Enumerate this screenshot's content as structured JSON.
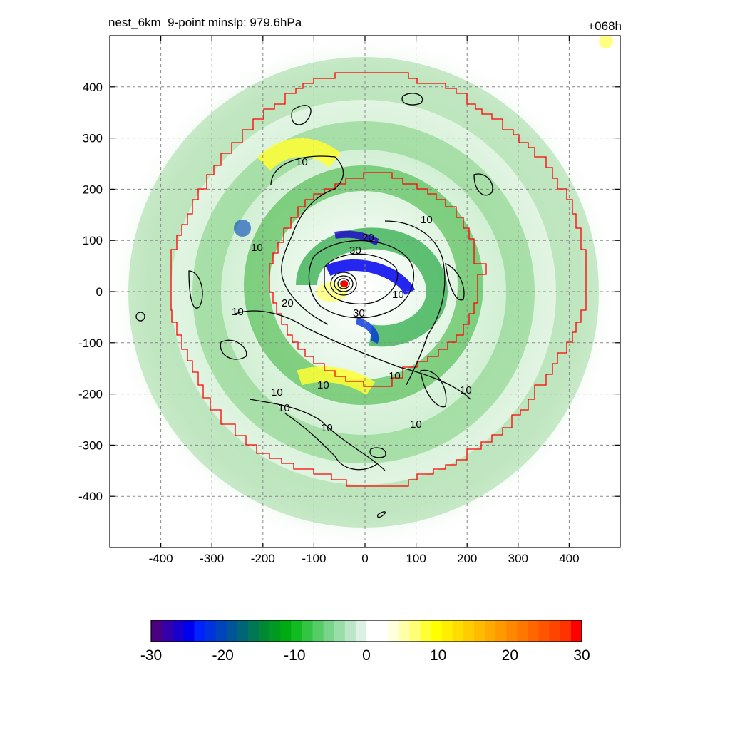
{
  "header": {
    "title": "nest_6km  9-point minslp: 979.6hPa",
    "time_label": "+068h"
  },
  "chart_data": {
    "type": "heatmap",
    "title": "nest_6km  9-point minslp: 979.6hPa",
    "time_label": "+068h",
    "xlim": [
      -500,
      500
    ],
    "ylim": [
      -500,
      500
    ],
    "x_ticks": [
      -400,
      -300,
      -200,
      -100,
      0,
      100,
      200,
      300,
      400
    ],
    "y_ticks": [
      -400,
      -300,
      -200,
      -100,
      0,
      100,
      200,
      300,
      400
    ],
    "grid": true,
    "contour_labels": [
      "10",
      "20",
      "30"
    ],
    "storm_center": [
      -40,
      15
    ],
    "colorbar": {
      "min": -30,
      "max": 30,
      "ticks": [
        -30,
        -20,
        -10,
        0,
        10,
        20,
        30
      ],
      "colors": [
        "#4b0082",
        "#3300aa",
        "#1a00cc",
        "#0000ee",
        "#0022ff",
        "#0033dd",
        "#0044bb",
        "#005599",
        "#006677",
        "#007755",
        "#008833",
        "#009922",
        "#00aa11",
        "#11bb22",
        "#33c444",
        "#55cc66",
        "#77d488",
        "#99dda8",
        "#bbe6c8",
        "#ddf0e4",
        "#ffffff",
        "#ffffff",
        "#ffffdd",
        "#ffffaa",
        "#ffff77",
        "#ffff33",
        "#ffff00",
        "#ffee00",
        "#ffdd00",
        "#ffcc00",
        "#ffbb00",
        "#ffaa00",
        "#ff9900",
        "#ff8800",
        "#ff7700",
        "#ff6600",
        "#ff5500",
        "#ff4400",
        "#ff3300",
        "#ff0000"
      ]
    }
  }
}
